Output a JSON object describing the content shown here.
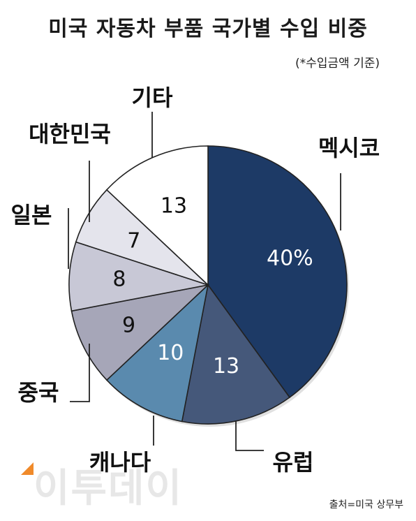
{
  "title": "미국 자동차 부품 국가별 수입 비중",
  "subtitle": "(*수입금액 기준)",
  "source": "출처=미국 상무부",
  "watermark": "이투데이",
  "chart_data": {
    "type": "pie",
    "title": "미국 자동차 부품 국가별 수입 비중",
    "subtitle": "(*수입금액 기준)",
    "unit": "%",
    "start_angle_deg": 0,
    "direction": "clockwise",
    "slices": [
      {
        "label": "멕시코",
        "value": 40,
        "display": "40%",
        "color": "#1d3a66",
        "text_color": "#ffffff"
      },
      {
        "label": "유럽",
        "value": 13,
        "display": "13",
        "color": "#45587a",
        "text_color": "#ffffff"
      },
      {
        "label": "캐나다",
        "value": 10,
        "display": "10",
        "color": "#5a8aae",
        "text_color": "#ffffff"
      },
      {
        "label": "중국",
        "value": 9,
        "display": "9",
        "color": "#a6a6b8",
        "text_color": "#111111"
      },
      {
        "label": "일본",
        "value": 8,
        "display": "8",
        "color": "#c8c8d6",
        "text_color": "#111111"
      },
      {
        "label": "대한민국",
        "value": 7,
        "display": "7",
        "color": "#e4e4ec",
        "text_color": "#111111"
      },
      {
        "label": "기타",
        "value": 13,
        "display": "13",
        "color": "#ffffff",
        "text_color": "#111111"
      }
    ]
  }
}
